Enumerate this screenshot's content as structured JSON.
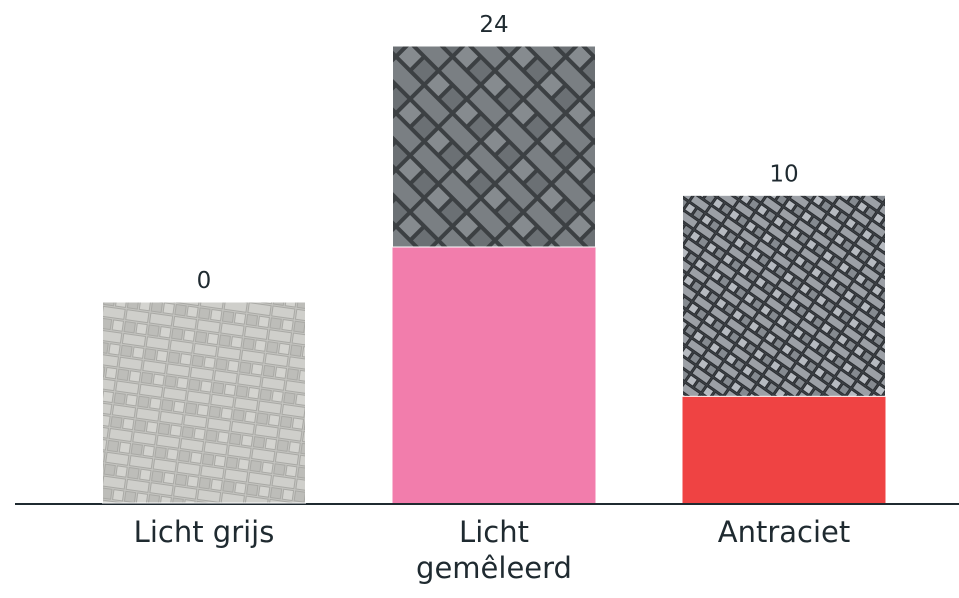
{
  "chart_data": {
    "type": "bar",
    "categories": [
      "Licht grijs",
      "Licht gemêleerd",
      "Antraciet"
    ],
    "values": [
      0,
      24,
      10
    ],
    "colors": [
      null,
      "#f27dac",
      "#ef4343"
    ]
  }
}
